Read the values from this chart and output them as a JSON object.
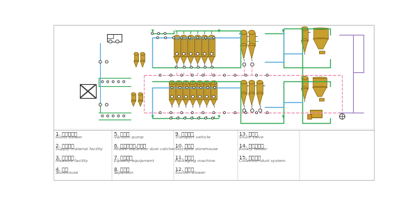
{
  "bg_color": "#ffffff",
  "colors": {
    "green": "#33aa55",
    "blue": "#55aadd",
    "pink": "#ee88aa",
    "purple": "#9977bb",
    "vessel_fill": "#c8a030",
    "vessel_dark": "#a07820",
    "vessel_light": "#e8c060",
    "vessel_outline": "#806010",
    "gray": "#666666",
    "dark": "#333333",
    "light_gray": "#999999"
  },
  "legend": [
    [
      "1. 罗茨鼓风机",
      "Roots blower",
      "5. 真空泵",
      "Vacuum pump",
      "9. 运输车辆",
      "Transport vehicle",
      "13. 分路阀",
      "Shunt valve"
    ],
    [
      "2. 送料设备",
      "Supply material facility",
      "6. 中间分离器,除尘器",
      "Middle separator dust catcher",
      "10. 贮存仓",
      "Stockpile storehouse",
      "14. 旋转供料器",
      "Rotary feeder"
    ],
    [
      "3. 计量设备",
      "Measure facility",
      "7. 均料装置",
      "Equality equipment",
      "11. 包装机",
      "Packaging machine",
      "15. 除尘系统",
      "Collection dust system"
    ],
    [
      "4. 料仓",
      "Storehouse",
      "8. 分离器",
      "Separator",
      "12. 引风机",
      "Suction blower"
    ]
  ]
}
